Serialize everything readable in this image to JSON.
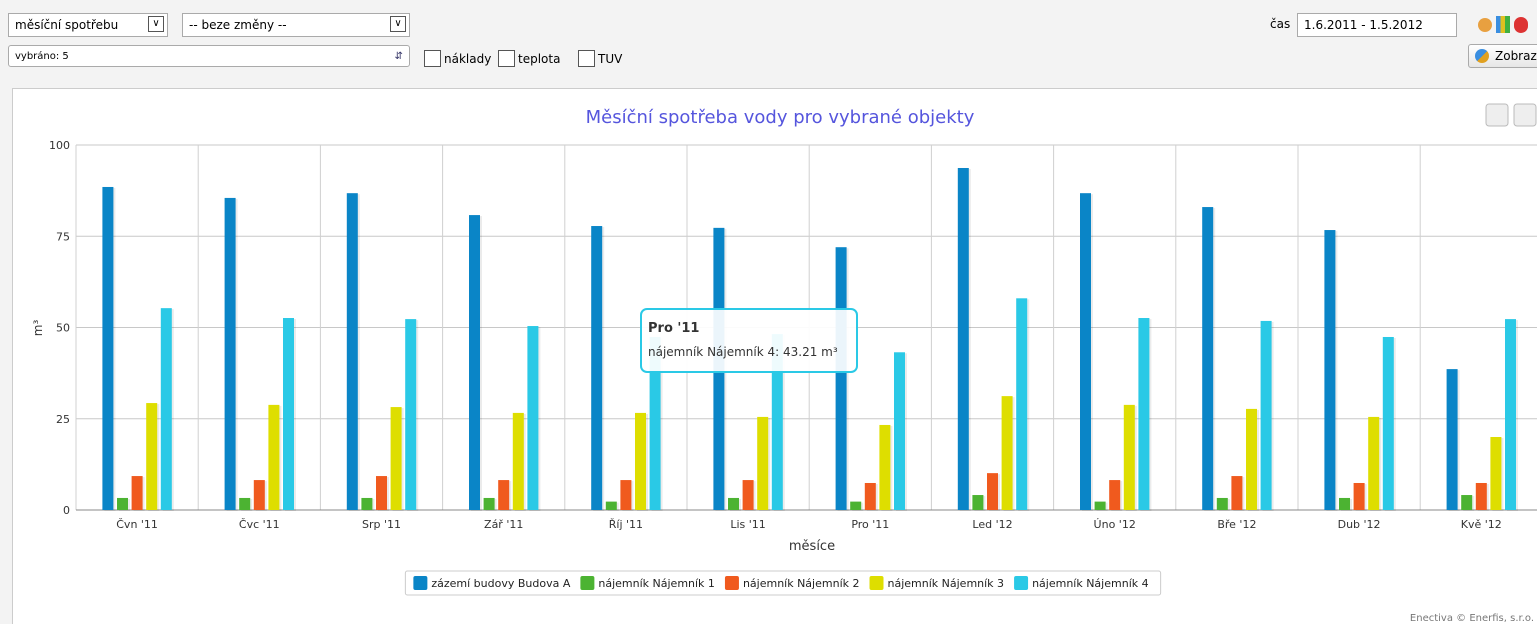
{
  "controls": {
    "period_select": "měsíční spotřebu",
    "change_select": "-- beze změny --",
    "selected": "vybráno: 5",
    "checkboxes": [
      "náklady",
      "teplota",
      "TUV"
    ],
    "time_label": "čas",
    "time_range": "1.6.2011 - 1.5.2012",
    "show_button": "Zobraz"
  },
  "chart_data": {
    "type": "bar",
    "title": "Měsíční spotřeba vody pro vybrané objekty",
    "x_label": "měsíce",
    "y_label": "m³",
    "categories": [
      "Čvn '11",
      "Čvc '11",
      "Srp '11",
      "Zář '11",
      "Říj '11",
      "Lis '11",
      "Pro '11",
      "Led '12",
      "Úno '12",
      "Bře '12",
      "Dub '12",
      "Kvě '12"
    ],
    "series": [
      {
        "name": "zázemí budovy Budova A",
        "color": "#0a85c7",
        "values": [
          88.5,
          85.5,
          86.8,
          80.8,
          77.8,
          77.3,
          72,
          93.7,
          86.8,
          83,
          76.7,
          38.6
        ]
      },
      {
        "name": "nájemník Nájemník 1",
        "color": "#4cb332",
        "values": [
          3.3,
          3.3,
          3.3,
          3.3,
          2.3,
          3.3,
          2.3,
          4.1,
          2.3,
          3.3,
          3.3,
          4.1
        ]
      },
      {
        "name": "nájemník Nájemník 2",
        "color": "#f05a1e",
        "values": [
          9.3,
          8.2,
          9.3,
          8.2,
          8.2,
          8.2,
          7.4,
          10.1,
          8.2,
          9.3,
          7.4,
          7.4
        ]
      },
      {
        "name": "nájemník Nájemník 3",
        "color": "#dede00",
        "values": [
          29.3,
          28.8,
          28.2,
          26.6,
          26.6,
          25.5,
          23.3,
          31.2,
          28.8,
          27.7,
          25.5,
          20
        ]
      },
      {
        "name": "nájemník Nájemník 4",
        "color": "#2ac9e6",
        "values": [
          55.3,
          52.6,
          52.3,
          50.4,
          47.4,
          48.2,
          43.21,
          58,
          52.6,
          51.8,
          47.4,
          52.3
        ]
      }
    ],
    "ylim": [
      0,
      100
    ],
    "yticks": [
      0,
      25,
      50,
      75,
      100
    ],
    "grid": true,
    "x_grid": true,
    "legend": "bottom"
  },
  "tooltip": {
    "title": "Pro '11",
    "text": "nájemník Nájemník 4: 43.21 m³"
  },
  "footer": "Enectiva © Enerfis, s.r.o."
}
